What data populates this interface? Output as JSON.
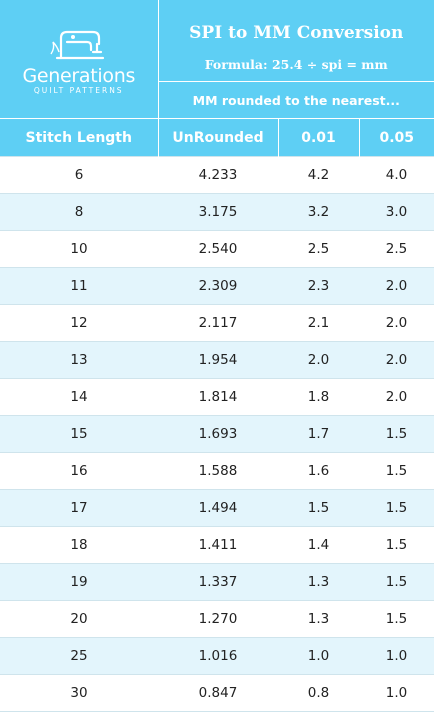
{
  "logo": {
    "icon": "sewing-machine-icon",
    "brand": "Generations",
    "tagline": "QUILT PATTERNS"
  },
  "header": {
    "title": "SPI to MM Conversion",
    "formula": "Formula: 25.4 ÷ spi = mm",
    "group_label": "MM rounded to the nearest..."
  },
  "columns": [
    "Stitch Length",
    "UnRounded",
    "0.01",
    "0.05"
  ],
  "rows": [
    [
      "6",
      "4.233",
      "4.2",
      "4.0"
    ],
    [
      "8",
      "3.175",
      "3.2",
      "3.0"
    ],
    [
      "10",
      "2.540",
      "2.5",
      "2.5"
    ],
    [
      "11",
      "2.309",
      "2.3",
      "2.0"
    ],
    [
      "12",
      "2.117",
      "2.1",
      "2.0"
    ],
    [
      "13",
      "1.954",
      "2.0",
      "2.0"
    ],
    [
      "14",
      "1.814",
      "1.8",
      "2.0"
    ],
    [
      "15",
      "1.693",
      "1.7",
      "1.5"
    ],
    [
      "16",
      "1.588",
      "1.6",
      "1.5"
    ],
    [
      "17",
      "1.494",
      "1.5",
      "1.5"
    ],
    [
      "18",
      "1.411",
      "1.4",
      "1.5"
    ],
    [
      "19",
      "1.337",
      "1.3",
      "1.5"
    ],
    [
      "20",
      "1.270",
      "1.3",
      "1.5"
    ],
    [
      "25",
      "1.016",
      "1.0",
      "1.0"
    ],
    [
      "30",
      "0.847",
      "0.8",
      "1.0"
    ]
  ],
  "colors": {
    "header_bg": "#5ecff4",
    "header_text": "#ffffff",
    "stripe": "#e3f5fc",
    "row_text": "#222222"
  }
}
